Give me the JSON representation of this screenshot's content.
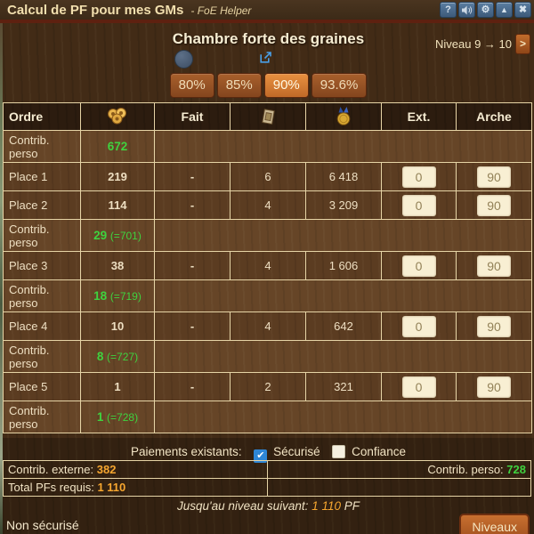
{
  "titlebar": {
    "title": "Calcul de PF pour mes GMs",
    "subtitle": "- FoE Helper",
    "buttons": [
      {
        "name": "help",
        "glyph": "?"
      },
      {
        "name": "sound",
        "glyph": ""
      },
      {
        "name": "settings",
        "glyph": "⚙"
      },
      {
        "name": "minimize",
        "glyph": "▲"
      },
      {
        "name": "close",
        "glyph": "✖"
      }
    ]
  },
  "header": {
    "building_name": "Chambre forte des graines",
    "level_label": "Niveau 9 → 10",
    "next_button": ">",
    "percent_tabs": [
      {
        "label": "80%",
        "active": false
      },
      {
        "label": "85%",
        "active": false
      },
      {
        "label": "90%",
        "active": true
      },
      {
        "label": "93.6%",
        "active": false
      }
    ]
  },
  "table": {
    "columns": {
      "ordre": "Ordre",
      "fp_icon": "forge-points-icon",
      "fait": "Fait",
      "blueprint_icon": "blueprint-icon",
      "medal_icon": "medal-icon",
      "ext": "Ext.",
      "arche": "Arche"
    },
    "rows": [
      {
        "type": "contrib",
        "label": "Contrib. perso",
        "value": "672",
        "extra": ""
      },
      {
        "type": "place",
        "label": "Place 1",
        "fp": "219",
        "fait": "-",
        "blueprints": "6",
        "medals": "6 418",
        "ext": "0",
        "arche": "90"
      },
      {
        "type": "place",
        "label": "Place 2",
        "fp": "114",
        "fait": "-",
        "blueprints": "4",
        "medals": "3 209",
        "ext": "0",
        "arche": "90"
      },
      {
        "type": "contrib",
        "label": "Contrib. perso",
        "value": "29",
        "extra": "(=701)"
      },
      {
        "type": "place",
        "label": "Place 3",
        "fp": "38",
        "fait": "-",
        "blueprints": "4",
        "medals": "1 606",
        "ext": "0",
        "arche": "90"
      },
      {
        "type": "contrib",
        "label": "Contrib. perso",
        "value": "18",
        "extra": "(=719)"
      },
      {
        "type": "place",
        "label": "Place 4",
        "fp": "10",
        "fait": "-",
        "blueprints": "4",
        "medals": "642",
        "ext": "0",
        "arche": "90"
      },
      {
        "type": "contrib",
        "label": "Contrib. perso",
        "value": "8",
        "extra": "(=727)"
      },
      {
        "type": "place",
        "label": "Place 5",
        "fp": "1",
        "fait": "-",
        "blueprints": "2",
        "medals": "321",
        "ext": "0",
        "arche": "90"
      },
      {
        "type": "contrib",
        "label": "Contrib. perso",
        "value": "1",
        "extra": "(=728)"
      }
    ]
  },
  "payments": {
    "label": "Paiements existants:",
    "secure_label": "Sécurisé",
    "secure_checked": true,
    "trust_label": "Confiance",
    "trust_checked": false,
    "checkmark": "✔"
  },
  "summary": {
    "externe_label": "Contrib. externe:",
    "externe_value": "382",
    "perso_label": "Contrib. perso:",
    "perso_value": "728",
    "total_label": "Total PFs requis:",
    "total_value": "1 110"
  },
  "next_level": {
    "label": "Jusqu'au niveau suivant:",
    "value": "1 110",
    "suffix": "PF"
  },
  "footer": {
    "status": "Non sécurisé",
    "levels_button": "Niveaux"
  },
  "colors": {
    "accent_orange": "#f6a62f",
    "positive_green": "#3fd23f",
    "link_blue": "#3e97f0",
    "wood_brown": "#5b3c21"
  }
}
